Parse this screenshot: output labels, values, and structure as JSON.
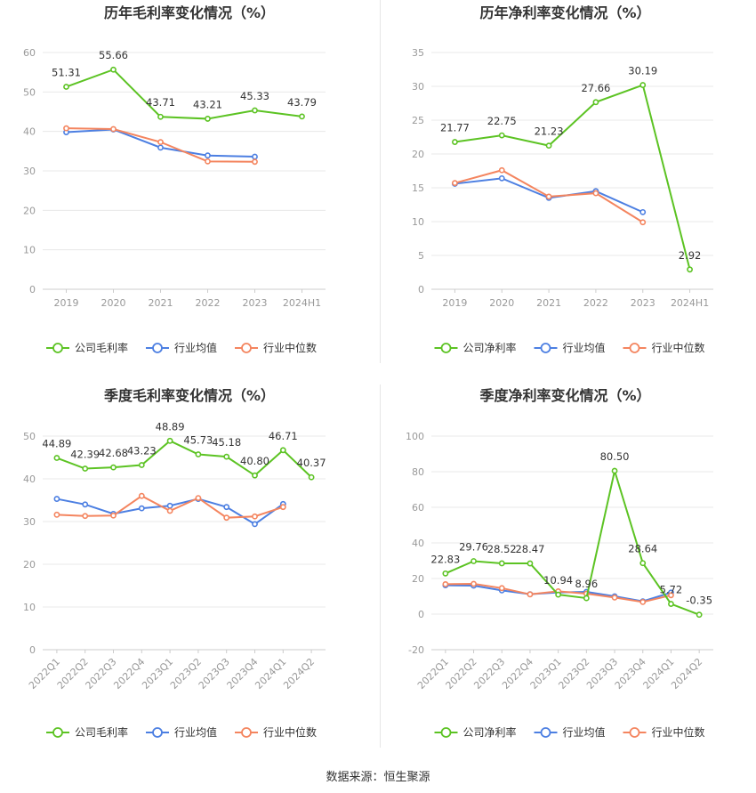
{
  "source": "数据来源：恒生聚源",
  "colors": {
    "company": "#5cc323",
    "avg": "#4c7fe2",
    "median": "#f4855f"
  },
  "chart_data": [
    {
      "type": "line",
      "title": "历年毛利率变化情况（%）",
      "categories": [
        "2019",
        "2020",
        "2021",
        "2022",
        "2023",
        "2024H1"
      ],
      "ylim": [
        0,
        60
      ],
      "yticks": [
        0,
        10,
        20,
        30,
        40,
        50,
        60
      ],
      "rotate_x": false,
      "series": [
        {
          "name": "公司毛利率",
          "key": "company",
          "values": [
            51.31,
            55.66,
            43.71,
            43.21,
            45.33,
            43.79
          ],
          "labels": [
            "51.31",
            "55.66",
            "43.71",
            "43.21",
            "45.33",
            "43.79"
          ]
        },
        {
          "name": "行业均值",
          "key": "avg",
          "values": [
            39.8,
            40.5,
            35.9,
            33.9,
            33.6,
            null
          ]
        },
        {
          "name": "行业中位数",
          "key": "median",
          "values": [
            40.8,
            40.6,
            37.3,
            32.4,
            32.3,
            null
          ]
        }
      ]
    },
    {
      "type": "line",
      "title": "历年净利率变化情况（%）",
      "categories": [
        "2019",
        "2020",
        "2021",
        "2022",
        "2023",
        "2024H1"
      ],
      "ylim": [
        0,
        35
      ],
      "yticks": [
        0,
        5,
        10,
        15,
        20,
        25,
        30,
        35
      ],
      "rotate_x": false,
      "series": [
        {
          "name": "公司净利率",
          "key": "company",
          "values": [
            21.77,
            22.75,
            21.23,
            27.66,
            30.19,
            2.92
          ],
          "labels": [
            "21.77",
            "22.75",
            "21.23",
            "27.66",
            "30.19",
            "2.92"
          ]
        },
        {
          "name": "行业均值",
          "key": "avg",
          "values": [
            15.6,
            16.4,
            13.5,
            14.5,
            11.4,
            null
          ]
        },
        {
          "name": "行业中位数",
          "key": "median",
          "values": [
            15.7,
            17.6,
            13.7,
            14.2,
            9.9,
            null
          ]
        }
      ]
    },
    {
      "type": "line",
      "title": "季度毛利率变化情况（%）",
      "categories": [
        "2022Q1",
        "2022Q2",
        "2022Q3",
        "2022Q4",
        "2023Q1",
        "2023Q2",
        "2023Q3",
        "2023Q4",
        "2024Q1",
        "2024Q2"
      ],
      "ylim": [
        0,
        50
      ],
      "yticks": [
        0,
        10,
        20,
        30,
        40,
        50
      ],
      "rotate_x": true,
      "series": [
        {
          "name": "公司毛利率",
          "key": "company",
          "values": [
            44.89,
            42.39,
            42.68,
            43.23,
            48.89,
            45.73,
            45.18,
            40.8,
            46.71,
            40.37
          ],
          "labels": [
            "44.89",
            "42.39",
            "42.68",
            "43.23",
            "48.89",
            "45.73",
            "45.18",
            "40.80",
            "46.71",
            "40.37"
          ]
        },
        {
          "name": "行业均值",
          "key": "avg",
          "values": [
            35.3,
            34,
            31.8,
            33.1,
            33.7,
            35.3,
            33.4,
            29.4,
            34.1,
            null
          ]
        },
        {
          "name": "行业中位数",
          "key": "median",
          "values": [
            31.6,
            31.3,
            31.4,
            36,
            32.5,
            35.5,
            30.9,
            31.2,
            33.4,
            null
          ]
        }
      ]
    },
    {
      "type": "line",
      "title": "季度净利率变化情况（%）",
      "categories": [
        "2022Q1",
        "2022Q2",
        "2022Q3",
        "2022Q4",
        "2023Q1",
        "2023Q2",
        "2023Q3",
        "2023Q4",
        "2024Q1",
        "2024Q2"
      ],
      "ylim": [
        -20,
        100
      ],
      "yticks": [
        -20,
        0,
        20,
        40,
        60,
        80,
        100
      ],
      "rotate_x": true,
      "series": [
        {
          "name": "公司净利率",
          "key": "company",
          "values": [
            22.83,
            29.76,
            28.52,
            28.47,
            10.94,
            8.96,
            80.5,
            28.64,
            5.72,
            -0.35
          ],
          "labels": [
            "22.83",
            "29.76",
            "28.52",
            "28.47",
            "10.94",
            "8.96",
            "80.50",
            "28.64",
            "5.72",
            "-0.35"
          ]
        },
        {
          "name": "行业均值",
          "key": "avg",
          "values": [
            16.2,
            16,
            13.3,
            11.2,
            12.2,
            12.5,
            10,
            7.2,
            12.1,
            null
          ]
        },
        {
          "name": "行业中位数",
          "key": "median",
          "values": [
            16.8,
            17,
            14.6,
            11.1,
            12.8,
            11.5,
            9.3,
            6.8,
            10.6,
            null
          ]
        }
      ]
    }
  ]
}
